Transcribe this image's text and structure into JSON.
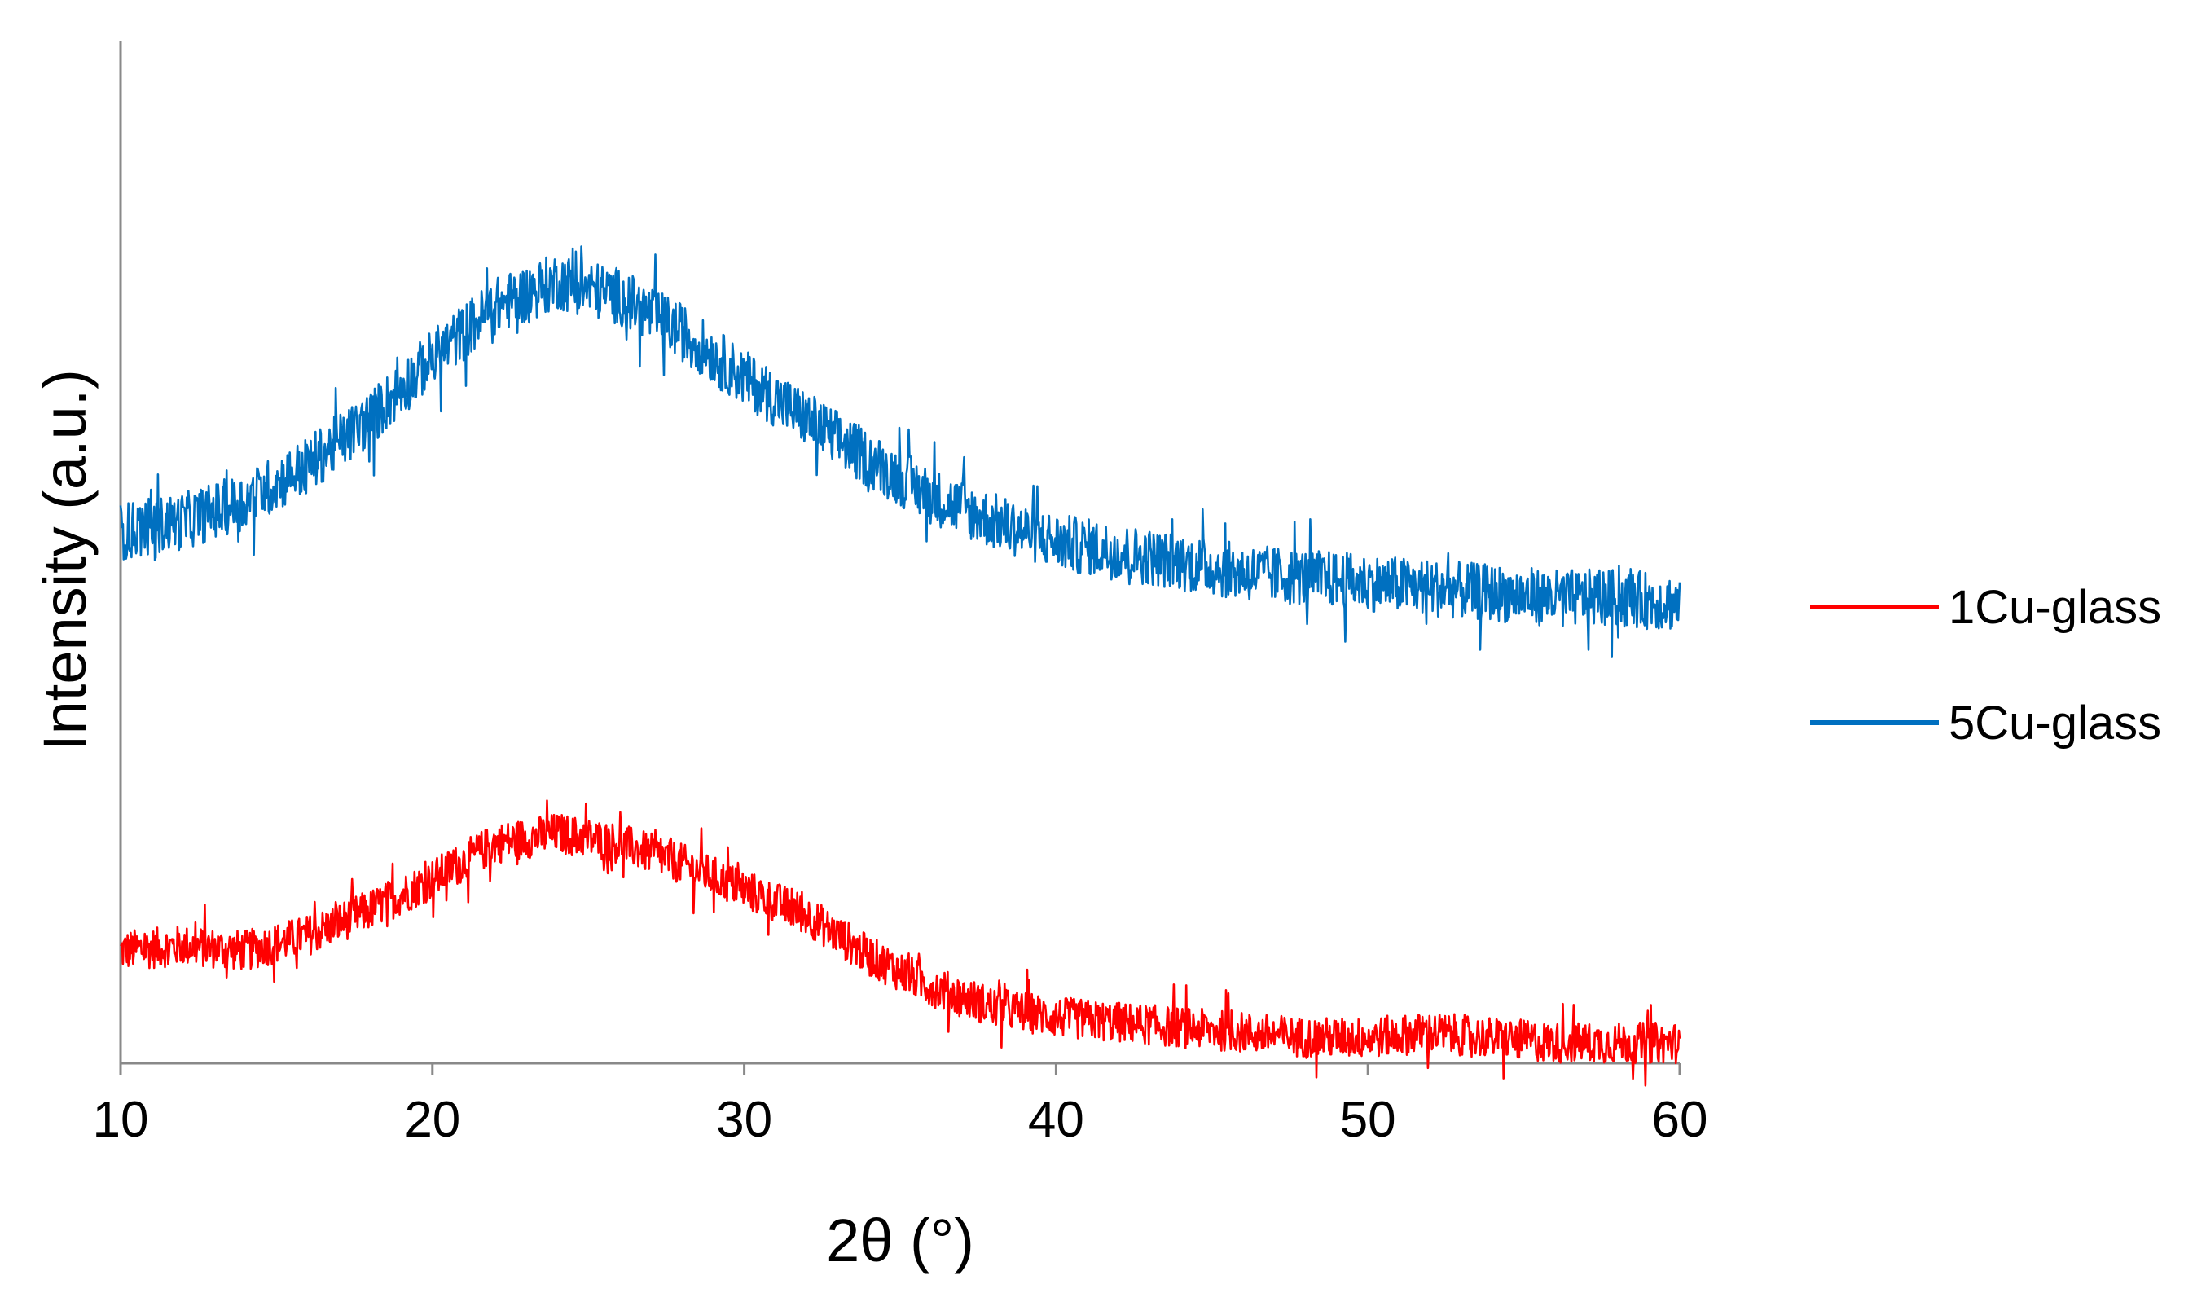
{
  "chart_data": {
    "type": "line",
    "title": "",
    "xlabel": "2θ (°)",
    "ylabel": "Intensity (a.u.)",
    "xlim": [
      10,
      60
    ],
    "ylim": [
      0,
      100
    ],
    "x_ticks": [
      10,
      20,
      30,
      40,
      50,
      60
    ],
    "x_tick_labels": [
      "10",
      "20",
      "30",
      "40",
      "50",
      "60"
    ],
    "y_ticks_shown": false,
    "grid": false,
    "legend_position": "right",
    "series": [
      {
        "name": "1Cu-glass",
        "color": "#ff0000",
        "x": [
          10,
          12,
          14,
          16,
          18,
          20,
          22,
          24,
          26,
          28,
          30,
          32,
          34,
          36,
          38,
          40,
          42,
          44,
          46,
          48,
          50,
          52,
          54,
          56,
          58,
          60
        ],
        "y": [
          11,
          11.5,
          11,
          12.5,
          15,
          18,
          21.5,
          22.5,
          21.5,
          19.5,
          17,
          14.5,
          10.5,
          7.5,
          5.5,
          4.5,
          4,
          3.5,
          3,
          2.5,
          2.5,
          3,
          2.5,
          2,
          2,
          2
        ],
        "noise_amplitude": 2
      },
      {
        "name": "5Cu-glass",
        "color": "#0070c0",
        "x": [
          10,
          12,
          14,
          16,
          18,
          20,
          22,
          24,
          26,
          28,
          30,
          32,
          34,
          36,
          38,
          40,
          42,
          44,
          46,
          48,
          50,
          52,
          54,
          56,
          58,
          60
        ],
        "y": [
          52,
          53,
          55,
          58.5,
          63,
          69,
          74,
          76.5,
          75,
          71.5,
          67,
          63,
          59,
          55.5,
          53,
          51,
          50,
          49,
          48,
          47.5,
          47,
          46.5,
          46,
          45.5,
          45.5,
          45
        ],
        "noise_amplitude": 2.8
      }
    ]
  }
}
